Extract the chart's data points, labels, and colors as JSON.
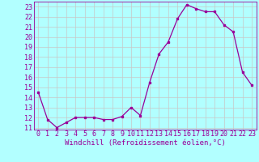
{
  "x": [
    0,
    1,
    2,
    3,
    4,
    5,
    6,
    7,
    8,
    9,
    10,
    11,
    12,
    13,
    14,
    15,
    16,
    17,
    18,
    19,
    20,
    21,
    22,
    23
  ],
  "y": [
    14.5,
    11.8,
    11.0,
    11.5,
    12.0,
    12.0,
    12.0,
    11.8,
    11.8,
    12.1,
    13.0,
    12.2,
    15.5,
    18.3,
    19.5,
    21.8,
    23.2,
    22.8,
    22.5,
    22.5,
    21.2,
    20.5,
    16.5,
    15.2
  ],
  "xlabel": "Windchill (Refroidissement éolien,°C)",
  "xlim_min": -0.5,
  "xlim_max": 23.5,
  "ylim_min": 10.8,
  "ylim_max": 23.5,
  "yticks": [
    11,
    12,
    13,
    14,
    15,
    16,
    17,
    18,
    19,
    20,
    21,
    22,
    23
  ],
  "xticks": [
    0,
    1,
    2,
    3,
    4,
    5,
    6,
    7,
    8,
    9,
    10,
    11,
    12,
    13,
    14,
    15,
    16,
    17,
    18,
    19,
    20,
    21,
    22,
    23
  ],
  "line_color": "#990099",
  "marker": "s",
  "marker_size": 2,
  "bg_color": "#b2ffff",
  "grid_color": "#c8c8c8",
  "tick_label_fontsize": 6,
  "xlabel_fontsize": 6.5
}
